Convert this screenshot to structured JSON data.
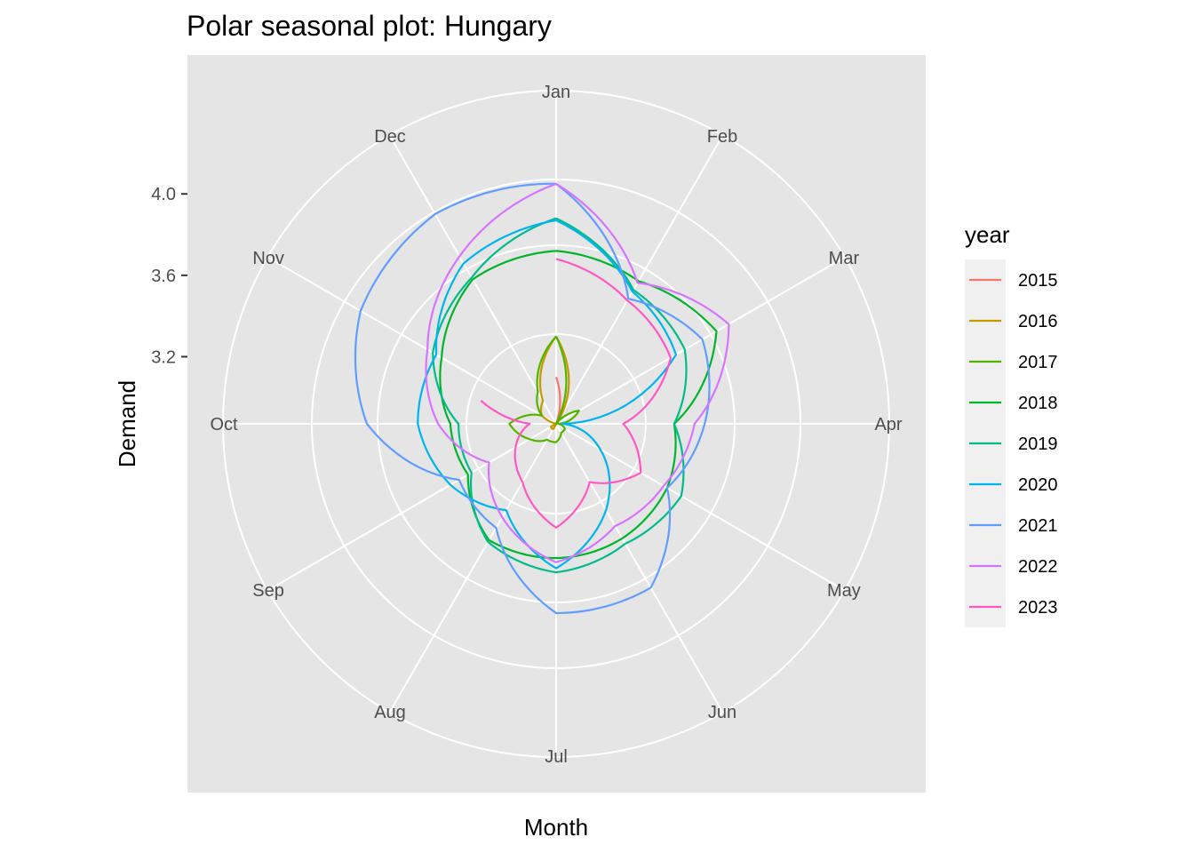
{
  "chart_data": {
    "type": "line",
    "coord": "polar",
    "title": "Polar seasonal plot: Hungary",
    "xlabel": "Month",
    "ylabel": "Demand",
    "categories": [
      "Jan",
      "Feb",
      "Mar",
      "Apr",
      "May",
      "Jun",
      "Jul",
      "Aug",
      "Sep",
      "Oct",
      "Nov",
      "Dec"
    ],
    "y_ticks": [
      "4.0",
      "3.6",
      "3.2"
    ],
    "legend_title": "year",
    "legend_position": "right",
    "grid": true,
    "colors": {
      "panel": "#e5e5e5",
      "grid": "#ffffff",
      "legend_key_bg": "#f0f0f0"
    },
    "series": [
      {
        "name": "2015",
        "color": "#F8766D",
        "values": [
          3.1,
          2.75,
          2.65,
          2.6,
          2.6,
          2.7,
          2.75,
          2.85,
          2.8,
          2.75,
          2.85,
          2.95
        ],
        "end": 5.6
      },
      {
        "name": "2016",
        "color": "#C49A00",
        "values": [
          3.3,
          2.92,
          2.82,
          2.72,
          2.75,
          2.8,
          2.8,
          2.9,
          2.9,
          2.8,
          2.95,
          3.0
        ]
      },
      {
        "name": "2017",
        "color": "#53B400",
        "values": [
          3.3,
          2.82,
          3.0,
          2.88,
          2.92,
          2.92,
          2.96,
          2.96,
          3.02,
          3.1,
          2.95,
          3.05
        ]
      },
      {
        "name": "2018",
        "color": "#00B52C",
        "values": [
          3.72,
          3.68,
          3.78,
          3.45,
          3.5,
          3.52,
          3.53,
          3.53,
          3.37,
          3.39,
          3.52,
          3.69
        ]
      },
      {
        "name": "2019",
        "color": "#00BC8B",
        "values": [
          3.88,
          3.63,
          3.6,
          3.45,
          3.58,
          3.55,
          3.6,
          3.54,
          3.35,
          3.35,
          3.57,
          3.7
        ]
      },
      {
        "name": "2020",
        "color": "#00B4EF",
        "values": [
          3.87,
          3.62,
          3.55,
          2.9,
          3.12,
          3.36,
          3.58,
          3.36,
          3.47,
          3.55,
          3.55,
          3.78
        ]
      },
      {
        "name": "2021",
        "color": "#619CFF",
        "values": [
          4.05,
          3.58,
          3.7,
          3.6,
          3.5,
          3.8,
          3.8,
          3.46,
          3.42,
          3.8,
          3.98,
          4.06
        ]
      },
      {
        "name": "2022",
        "color": "#D575FE",
        "values": [
          4.05,
          3.67,
          3.85,
          3.55,
          3.48,
          3.45,
          3.55,
          3.4,
          3.25,
          3.45,
          3.6,
          3.82
        ]
      },
      {
        "name": "2023",
        "color": "#FF58C3",
        "values": [
          3.68,
          3.57,
          3.52,
          3.2,
          3.35,
          3.2,
          3.38,
          3.2,
          3.1,
          3.0,
          3.45,
          3.5
        ],
        "end": 9.6
      }
    ]
  }
}
